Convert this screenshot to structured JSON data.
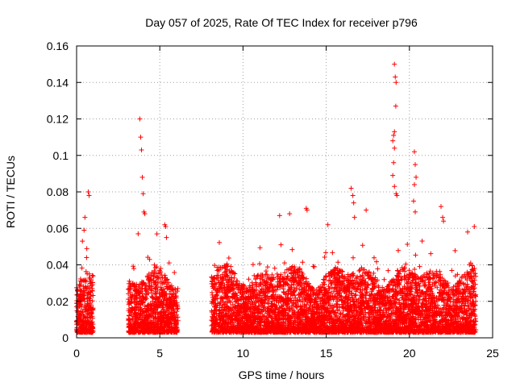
{
  "chart_data": {
    "type": "scatter",
    "title": "Day 057 of 2025, Rate Of TEC Index for receiver p796",
    "xlabel": "GPS time / hours",
    "ylabel": "ROTI / TECUs",
    "xlim": [
      0,
      25
    ],
    "ylim": [
      0,
      0.16
    ],
    "x_ticks": [
      "0",
      "5",
      "10",
      "15",
      "20",
      "25"
    ],
    "y_ticks": [
      "0",
      "0.02",
      "0.04",
      "0.06",
      "0.08",
      "0.1",
      "0.12",
      "0.14",
      "0.16"
    ],
    "grid": true,
    "marker": "+",
    "color": "#ff0000",
    "data_segments": [
      {
        "x_start": 0.0,
        "x_end": 1.0,
        "typical_max": 0.025,
        "peaks": [
          [
            0.35,
            0.053
          ],
          [
            0.45,
            0.059
          ],
          [
            0.5,
            0.066
          ],
          [
            0.7,
            0.08
          ],
          [
            0.75,
            0.078
          ],
          [
            0.6,
            0.044
          ]
        ]
      },
      {
        "x_start": 3.1,
        "x_end": 6.1,
        "typical_max": 0.028,
        "peaks": [
          [
            3.8,
            0.12
          ],
          [
            3.85,
            0.11
          ],
          [
            3.9,
            0.103
          ],
          [
            3.95,
            0.088
          ],
          [
            4.0,
            0.079
          ],
          [
            4.05,
            0.069
          ],
          [
            4.1,
            0.068
          ],
          [
            3.7,
            0.057
          ],
          [
            5.3,
            0.062
          ],
          [
            5.35,
            0.061
          ],
          [
            5.4,
            0.055
          ]
        ]
      },
      {
        "x_start": 8.1,
        "x_end": 24.0,
        "typical_max": 0.03,
        "peaks": [
          [
            12.2,
            0.067
          ],
          [
            12.8,
            0.068
          ],
          [
            13.8,
            0.071
          ],
          [
            13.85,
            0.07
          ],
          [
            15.1,
            0.062
          ],
          [
            16.5,
            0.082
          ],
          [
            16.6,
            0.078
          ],
          [
            16.65,
            0.074
          ],
          [
            16.7,
            0.066
          ],
          [
            17.4,
            0.07
          ],
          [
            19.1,
            0.15
          ],
          [
            19.15,
            0.143
          ],
          [
            19.2,
            0.14
          ],
          [
            19.18,
            0.127
          ],
          [
            19.1,
            0.113
          ],
          [
            19.05,
            0.111
          ],
          [
            19.0,
            0.108
          ],
          [
            19.1,
            0.104
          ],
          [
            19.05,
            0.096
          ],
          [
            19.0,
            0.089
          ],
          [
            19.1,
            0.083
          ],
          [
            19.2,
            0.079
          ],
          [
            19.25,
            0.078
          ],
          [
            20.3,
            0.102
          ],
          [
            20.35,
            0.095
          ],
          [
            20.4,
            0.088
          ],
          [
            20.3,
            0.084
          ],
          [
            20.25,
            0.075
          ],
          [
            20.35,
            0.069
          ],
          [
            21.9,
            0.072
          ],
          [
            22.0,
            0.066
          ],
          [
            22.05,
            0.064
          ],
          [
            23.9,
            0.061
          ],
          [
            23.5,
            0.058
          ]
        ]
      }
    ]
  }
}
